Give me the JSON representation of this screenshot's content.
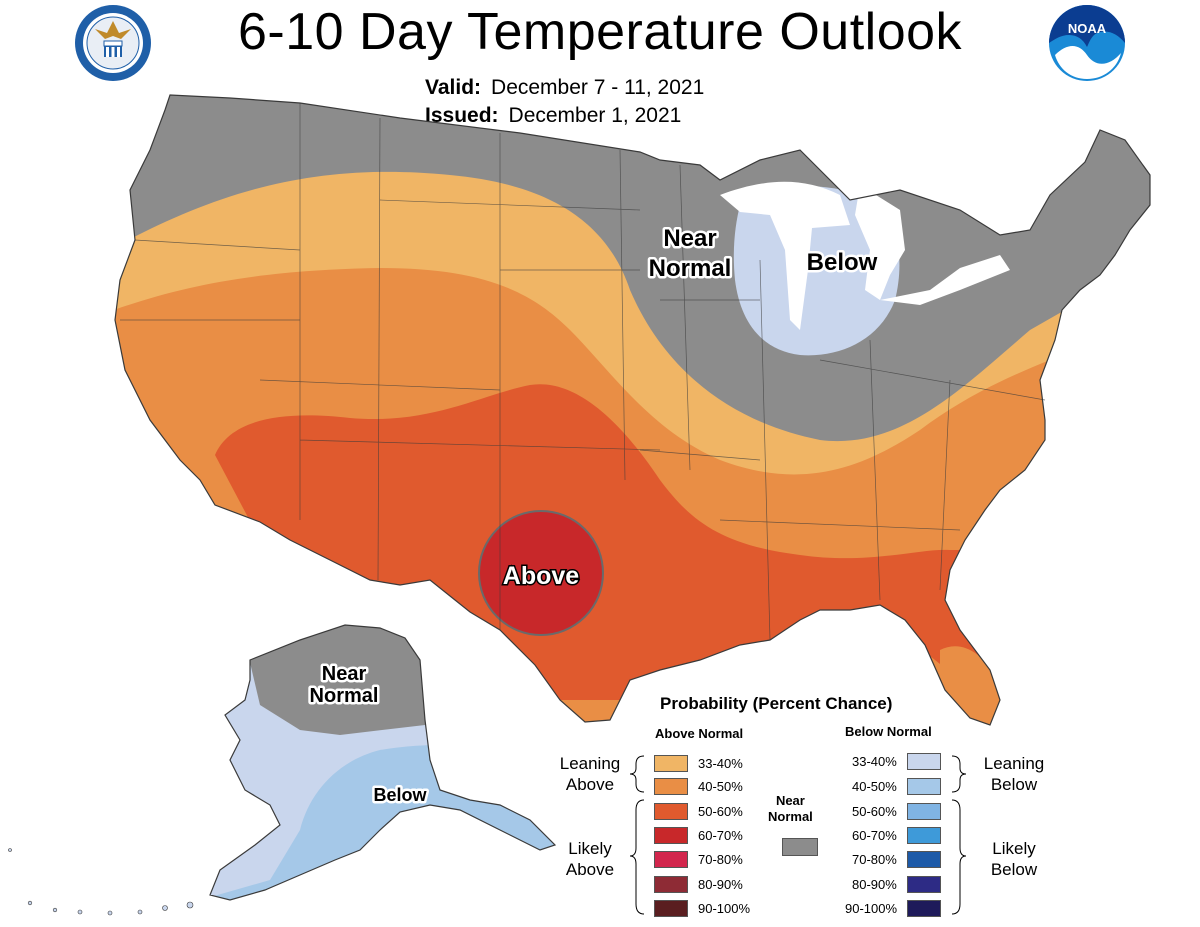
{
  "header": {
    "title": "6-10 Day Temperature Outlook",
    "valid_label": "Valid:",
    "valid_value": "December 7 - 11, 2021",
    "issued_label": "Issued:",
    "issued_value": "December 1, 2021"
  },
  "logos": {
    "left": "department-of-commerce-seal",
    "right": "noaa-logo",
    "noaa_text": "NOAA"
  },
  "map_labels": {
    "near_normal_conus": [
      "Near",
      "Normal"
    ],
    "below_conus": "Below",
    "above_conus": "Above",
    "near_normal_alaska": [
      "Near",
      "Normal"
    ],
    "below_alaska": "Below"
  },
  "colors": {
    "near_normal": "#8c8c8c",
    "above_33_40": "#f0b565",
    "above_40_50": "#e98e45",
    "above_50_60": "#e05a2e",
    "above_60_70": "#c8282a",
    "above_70_80": "#d2264d",
    "above_80_90": "#8e2b35",
    "above_90_100": "#5a1e20",
    "below_33_40": "#c9d6ed",
    "below_40_50": "#a5c8e8",
    "below_50_60": "#80b4e4",
    "below_60_70": "#3e9ad9",
    "below_70_80": "#1d5aa8",
    "below_80_90": "#2d2b85",
    "below_90_100": "#1e1a5a"
  },
  "legend": {
    "title": "Probability (Percent Chance)",
    "above_header": "Above Normal",
    "below_header": "Below Normal",
    "near_normal_label": [
      "Near",
      "Normal"
    ],
    "leaning_above": [
      "Leaning",
      "Above"
    ],
    "likely_above": [
      "Likely",
      "Above"
    ],
    "leaning_below": [
      "Leaning",
      "Below"
    ],
    "likely_below": [
      "Likely",
      "Below"
    ],
    "ranges": [
      "33-40%",
      "40-50%",
      "50-60%",
      "60-70%",
      "70-80%",
      "80-90%",
      "90-100%"
    ]
  }
}
